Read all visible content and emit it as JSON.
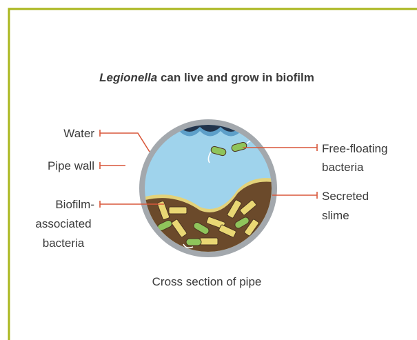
{
  "title": {
    "italic": "Legionella",
    "rest": "can live and grow in biofilm"
  },
  "labels": {
    "water": "Water",
    "pipe_wall": "Pipe wall",
    "biofilm_bacteria": [
      "Biofilm-",
      "associated",
      "bacteria"
    ],
    "free_floating": [
      "Free-floating",
      "bacteria"
    ],
    "slime": [
      "Secreted",
      "slime"
    ]
  },
  "caption": "Cross section of pipe"
}
